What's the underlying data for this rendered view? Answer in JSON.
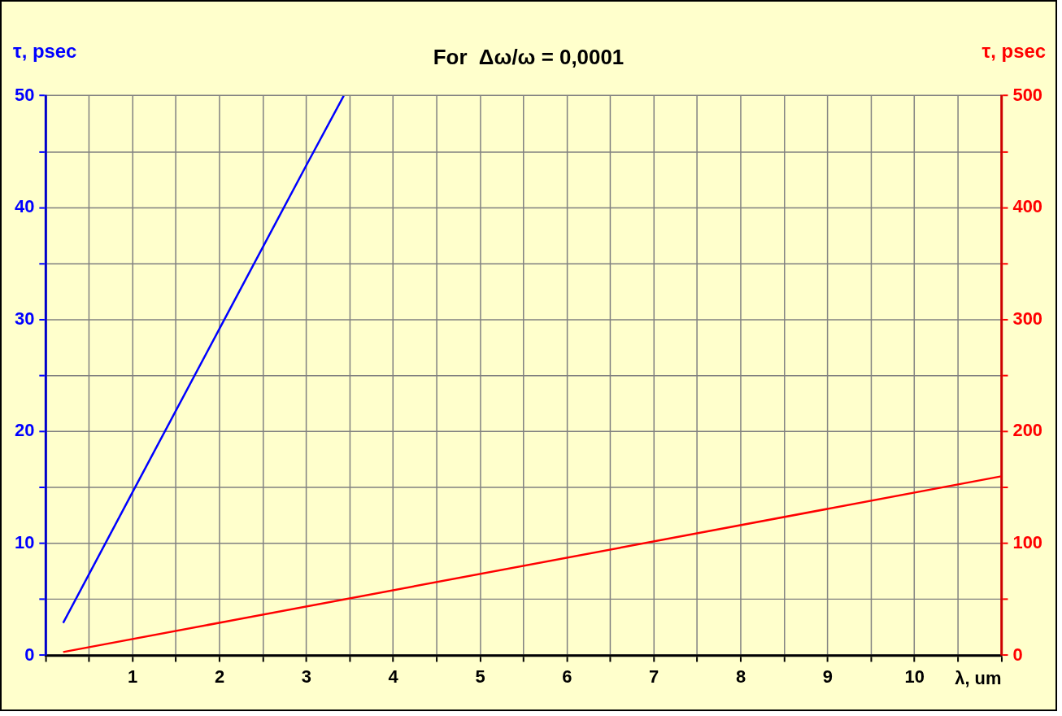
{
  "chart_data": {
    "type": "line",
    "title": "For  Δω/ω = 0,0001",
    "xlabel": "λ, um",
    "ylabel": "τ, psec",
    "y2label": "τ, psec",
    "xlim": [
      0,
      11
    ],
    "xticks": [
      {
        "value": 0,
        "label": null
      },
      {
        "value": 0.5,
        "label": null
      },
      1,
      {
        "value": 1.5,
        "label": null
      },
      2,
      {
        "value": 2.5,
        "label": null
      },
      3,
      {
        "value": 3.5,
        "label": null
      },
      4,
      {
        "value": 4.5,
        "label": null
      },
      5,
      {
        "value": 5.5,
        "label": null
      },
      6,
      {
        "value": 6.5,
        "label": null
      },
      7,
      {
        "value": 7.5,
        "label": null
      },
      8,
      {
        "value": 8.5,
        "label": null
      },
      9,
      {
        "value": 9.5,
        "label": null
      },
      10,
      {
        "value": 10.5,
        "label": null
      },
      {
        "value": 11,
        "label": null
      }
    ],
    "ylim": [
      0,
      50
    ],
    "yticks": [
      0,
      {
        "value": 5,
        "label": null
      },
      10,
      {
        "value": 15,
        "label": null
      },
      20,
      {
        "value": 25,
        "label": null
      },
      30,
      {
        "value": 35,
        "label": null
      },
      40,
      {
        "value": 45,
        "label": null
      },
      50
    ],
    "y2lim": [
      0,
      500
    ],
    "y2ticks": [
      0,
      {
        "value": 50,
        "label": null
      },
      100,
      {
        "value": 150,
        "label": null
      },
      200,
      {
        "value": 250,
        "label": null
      },
      300,
      {
        "value": 350,
        "label": null
      },
      400,
      {
        "value": 450,
        "label": null
      },
      500
    ],
    "series": [
      {
        "color": "#0000ff",
        "x": [
          0.2,
          1,
          2,
          3,
          3.43
        ],
        "values": [
          2.9,
          14.6,
          29.2,
          43.8,
          50
        ]
      },
      {
        "color": "#ff0000",
        "axis": "y2",
        "x": [
          0.2,
          11
        ],
        "values": [
          3,
          160
        ]
      }
    ],
    "grid": true,
    "legend": false,
    "marker": "none",
    "line_style": "solid"
  }
}
